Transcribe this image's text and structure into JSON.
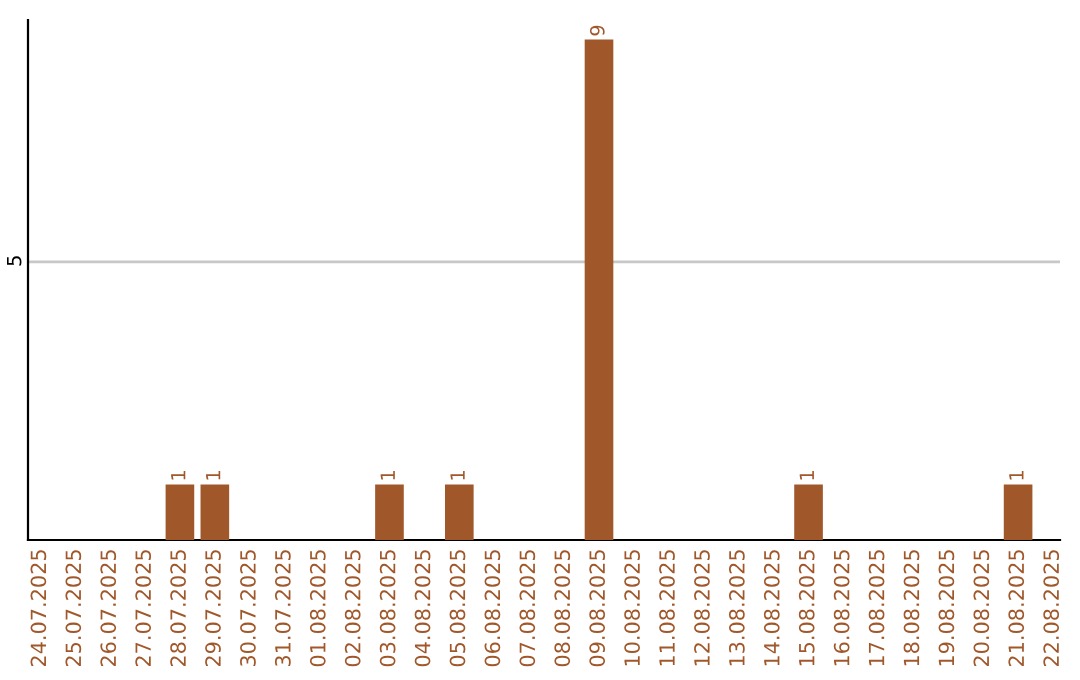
{
  "chart_data": {
    "type": "bar",
    "categories": [
      "24.07.2025",
      "25.07.2025",
      "26.07.2025",
      "27.07.2025",
      "28.07.2025",
      "29.07.2025",
      "30.07.2025",
      "31.07.2025",
      "01.08.2025",
      "02.08.2025",
      "03.08.2025",
      "04.08.2025",
      "05.08.2025",
      "06.08.2025",
      "07.08.2025",
      "08.08.2025",
      "09.08.2025",
      "10.08.2025",
      "11.08.2025",
      "12.08.2025",
      "13.08.2025",
      "14.08.2025",
      "15.08.2025",
      "16.08.2025",
      "17.08.2025",
      "18.08.2025",
      "19.08.2025",
      "20.08.2025",
      "21.08.2025",
      "22.08.2025"
    ],
    "values": [
      0,
      0,
      0,
      0,
      1,
      1,
      0,
      0,
      0,
      0,
      1,
      0,
      1,
      0,
      0,
      0,
      9,
      0,
      0,
      0,
      0,
      0,
      1,
      0,
      0,
      0,
      0,
      0,
      1,
      0
    ],
    "value_labels": [
      null,
      null,
      null,
      null,
      "1",
      "1",
      null,
      null,
      null,
      null,
      "1",
      null,
      "1",
      null,
      null,
      null,
      "9",
      null,
      null,
      null,
      null,
      null,
      "1",
      null,
      null,
      null,
      null,
      null,
      "1",
      null
    ],
    "color": "#a0572a",
    "ylim": [
      0,
      9.35
    ],
    "yticks": [
      5
    ],
    "grid": "y"
  }
}
